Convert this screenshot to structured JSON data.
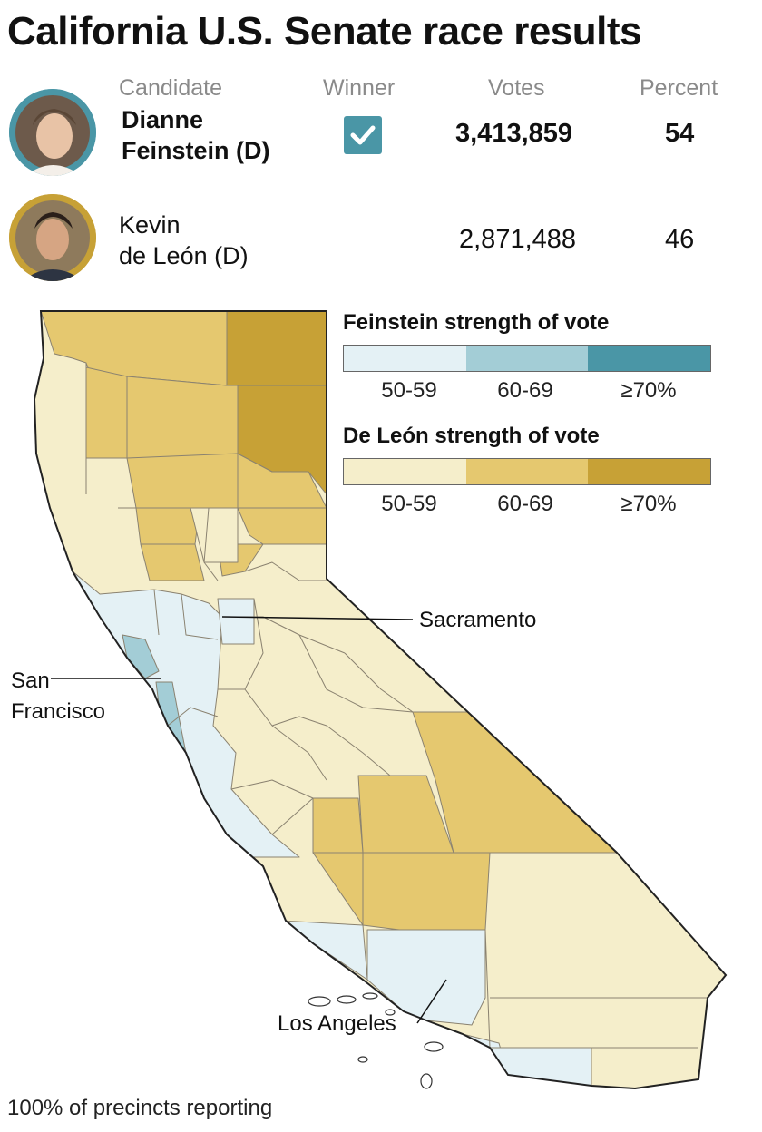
{
  "title": "California U.S. Senate race results",
  "columns": {
    "candidate": "Candidate",
    "winner": "Winner",
    "votes": "Votes",
    "percent": "Percent"
  },
  "candidates": [
    {
      "name_line1": "Dianne",
      "name_line2": "Feinstein (D)",
      "winner": true,
      "votes": "3,413,859",
      "percent": "54",
      "ring_color": "#4a96a6"
    },
    {
      "name_line1": "Kevin",
      "name_line2": "de León (D)",
      "winner": false,
      "votes": "2,871,488",
      "percent": "46",
      "ring_color": "#c7a136"
    }
  ],
  "legend": {
    "feinstein": {
      "title": "Feinstein strength of vote",
      "bins": [
        "50-59",
        "60-69",
        "≥70%"
      ],
      "colors": [
        "#e4f1f5",
        "#a3cdd6",
        "#4a96a6"
      ]
    },
    "deleon": {
      "title": "De León strength of vote",
      "bins": [
        "50-59",
        "60-69",
        "≥70%"
      ],
      "colors": [
        "#f5eecb",
        "#e5c86f",
        "#c7a136"
      ]
    }
  },
  "map": {
    "labels": {
      "sacramento": "Sacramento",
      "sf_line1": "San",
      "sf_line2": "Francisco",
      "la": "Los Angeles"
    }
  },
  "footer": "100% of precincts reporting"
}
